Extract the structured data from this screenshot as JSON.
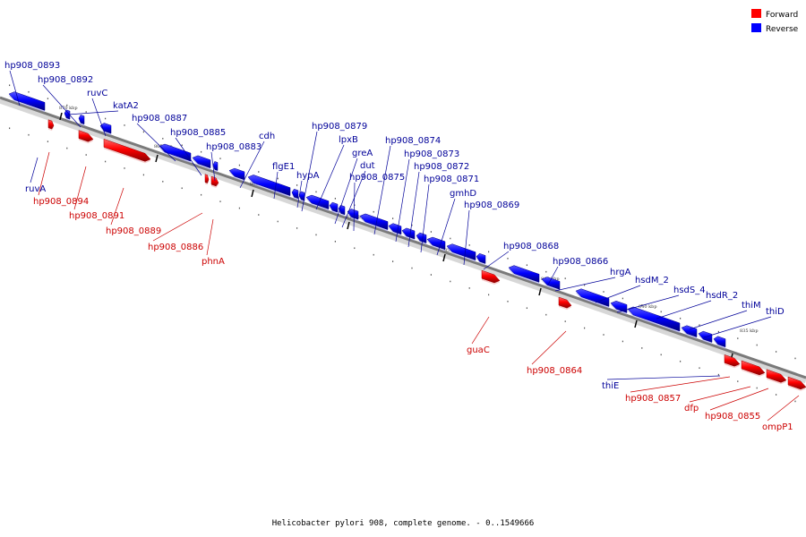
{
  "caption": "Helicobacter pylori 908, complete genome. - 0..1549666",
  "legend": [
    {
      "label": "Forward",
      "color": "#ff0000"
    },
    {
      "label": "Reverse",
      "color": "#0000ff"
    }
  ],
  "colors": {
    "forward": "#ff0000",
    "reverse": "#0000ff",
    "forward_label": "#cc0000",
    "reverse_label": "#000099"
  },
  "kbp_ticks": [
    "870 kbp",
    "865 kbp",
    "860 kbp",
    "855 kbp",
    "850 kbp",
    "845 kbp",
    "840 kbp",
    "835 kbp"
  ],
  "genes": [
    {
      "name": "hp908_0893",
      "strand": "reverse"
    },
    {
      "name": "hp908_0892",
      "strand": "reverse"
    },
    {
      "name": "ruvC",
      "strand": "reverse"
    },
    {
      "name": "katA2",
      "strand": "reverse"
    },
    {
      "name": "hp908_0887",
      "strand": "reverse"
    },
    {
      "name": "hp908_0885",
      "strand": "reverse"
    },
    {
      "name": "hp908_0883",
      "strand": "reverse"
    },
    {
      "name": "cdh",
      "strand": "reverse"
    },
    {
      "name": "flgE1",
      "strand": "reverse"
    },
    {
      "name": "hypA",
      "strand": "reverse"
    },
    {
      "name": "hp908_0879",
      "strand": "reverse"
    },
    {
      "name": "lpxB",
      "strand": "reverse"
    },
    {
      "name": "greA",
      "strand": "reverse"
    },
    {
      "name": "dut",
      "strand": "reverse"
    },
    {
      "name": "hp908_0875",
      "strand": "reverse"
    },
    {
      "name": "hp908_0874",
      "strand": "reverse"
    },
    {
      "name": "hp908_0873",
      "strand": "reverse"
    },
    {
      "name": "hp908_0872",
      "strand": "reverse"
    },
    {
      "name": "hp908_0871",
      "strand": "reverse"
    },
    {
      "name": "gmhD",
      "strand": "reverse"
    },
    {
      "name": "hp908_0869",
      "strand": "reverse"
    },
    {
      "name": "hp908_0868",
      "strand": "reverse"
    },
    {
      "name": "hp908_0866",
      "strand": "reverse"
    },
    {
      "name": "hrgA",
      "strand": "reverse"
    },
    {
      "name": "hsdM_2",
      "strand": "reverse"
    },
    {
      "name": "hsdS_4",
      "strand": "reverse"
    },
    {
      "name": "hsdR_2",
      "strand": "reverse"
    },
    {
      "name": "thiM",
      "strand": "reverse"
    },
    {
      "name": "thiD",
      "strand": "reverse"
    },
    {
      "name": "thiE",
      "strand": "reverse"
    },
    {
      "name": "ruvA",
      "strand": "reverse"
    },
    {
      "name": "hp908_0894",
      "strand": "forward"
    },
    {
      "name": "hp908_0891",
      "strand": "forward"
    },
    {
      "name": "hp908_0889",
      "strand": "forward"
    },
    {
      "name": "hp908_0886",
      "strand": "forward"
    },
    {
      "name": "phnA",
      "strand": "forward"
    },
    {
      "name": "guaC",
      "strand": "forward"
    },
    {
      "name": "hp908_0864",
      "strand": "forward"
    },
    {
      "name": "hp908_0857",
      "strand": "forward"
    },
    {
      "name": "dfp",
      "strand": "forward"
    },
    {
      "name": "hp908_0855",
      "strand": "forward"
    },
    {
      "name": "ompP1",
      "strand": "forward"
    }
  ]
}
